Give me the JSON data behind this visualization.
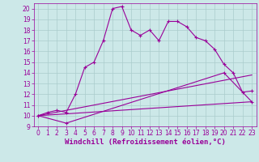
{
  "xlabel": "Windchill (Refroidissement éolien,°C)",
  "bg_color": "#cce8e8",
  "grid_color": "#aacccc",
  "line_color": "#990099",
  "xlim": [
    -0.5,
    23.5
  ],
  "ylim": [
    9,
    20.5
  ],
  "xticks": [
    0,
    1,
    2,
    3,
    4,
    5,
    6,
    7,
    8,
    9,
    10,
    11,
    12,
    13,
    14,
    15,
    16,
    17,
    18,
    19,
    20,
    21,
    22,
    23
  ],
  "yticks": [
    9,
    10,
    11,
    12,
    13,
    14,
    15,
    16,
    17,
    18,
    19,
    20
  ],
  "line1_x": [
    0,
    1,
    2,
    3,
    4,
    5,
    6,
    7,
    8,
    9,
    10,
    11,
    12,
    13,
    14,
    15,
    16,
    17,
    18,
    19,
    20,
    21,
    22,
    23
  ],
  "line1_y": [
    10.0,
    10.3,
    10.5,
    10.3,
    12.0,
    14.5,
    15.0,
    17.0,
    20.0,
    20.2,
    18.0,
    17.5,
    18.0,
    17.0,
    18.8,
    18.8,
    18.3,
    17.3,
    17.0,
    16.2,
    14.8,
    14.0,
    12.2,
    12.3
  ],
  "line2_x": [
    0,
    3,
    20,
    23
  ],
  "line2_y": [
    10.0,
    9.3,
    14.0,
    11.3
  ],
  "line3_x": [
    0,
    23
  ],
  "line3_y": [
    10.0,
    13.8
  ],
  "line4_x": [
    0,
    23
  ],
  "line4_y": [
    10.0,
    11.3
  ],
  "font_size_xlabel": 6.5,
  "font_size_ticks": 5.5
}
